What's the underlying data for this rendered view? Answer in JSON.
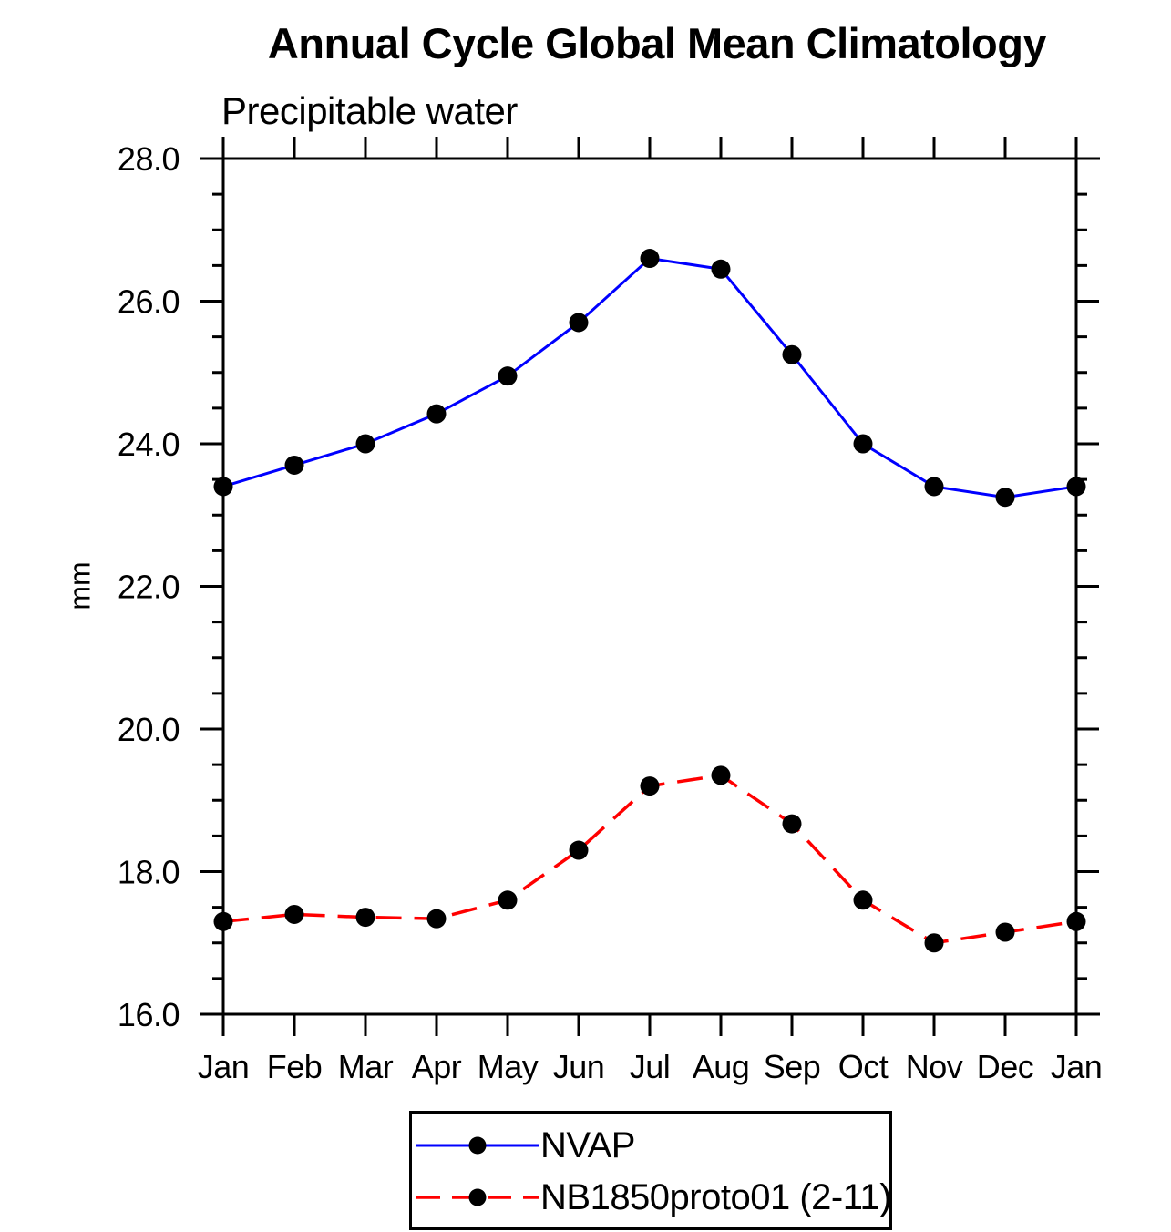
{
  "page": {
    "background": "#ffffff"
  },
  "chart": {
    "title": "Annual Cycle Global Mean Climatology",
    "subtitle": "Precipitable water",
    "ylabel": "mm"
  },
  "chart_data": {
    "type": "line",
    "title": "Annual Cycle Global Mean Climatology",
    "subtitle": "Precipitable water",
    "ylabel": "mm",
    "xlabel": "",
    "categories": [
      "Jan",
      "Feb",
      "Mar",
      "Apr",
      "May",
      "Jun",
      "Jul",
      "Aug",
      "Sep",
      "Oct",
      "Nov",
      "Dec",
      "Jan"
    ],
    "ylim": [
      16.0,
      28.0
    ],
    "yticks_major": [
      {
        "value": 16.0,
        "label": "16.0"
      },
      {
        "value": 18.0,
        "label": "18.0"
      },
      {
        "value": 20.0,
        "label": "20.0"
      },
      {
        "value": 22.0,
        "label": "22.0"
      },
      {
        "value": 24.0,
        "label": "24.0"
      },
      {
        "value": 26.0,
        "label": "26.0"
      },
      {
        "value": 28.0,
        "label": "28.0"
      }
    ],
    "ytick_minor_step": 0.5,
    "grid": false,
    "legend_position": "bottom-center",
    "axis_color": "#000000",
    "series": [
      {
        "name": "NVAP",
        "color": "#0000ff",
        "line_style": "solid",
        "marker": "filled-circle",
        "marker_color": "#000000",
        "values": [
          23.4,
          23.7,
          24.0,
          24.42,
          24.95,
          25.7,
          26.6,
          26.45,
          25.25,
          24.0,
          23.4,
          23.25,
          23.4
        ]
      },
      {
        "name": "NB1850proto01 (2-11)",
        "color": "#ff0000",
        "line_style": "dashed",
        "marker": "filled-circle",
        "marker_color": "#000000",
        "values": [
          17.3,
          17.4,
          17.36,
          17.34,
          17.6,
          18.3,
          19.2,
          19.35,
          18.67,
          17.6,
          17.0,
          17.15,
          17.3
        ]
      }
    ]
  }
}
